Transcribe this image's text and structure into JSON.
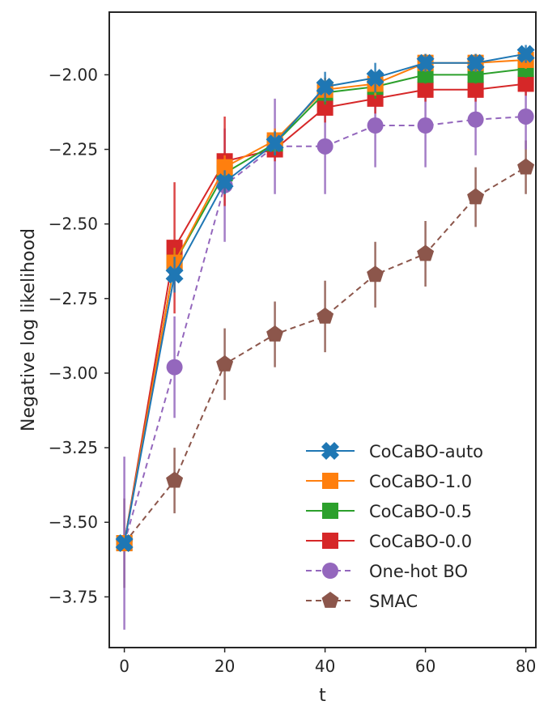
{
  "chart_data": {
    "type": "line",
    "xlabel": "t",
    "ylabel": "Negative log likelihood",
    "xlim": [
      -3,
      82
    ],
    "ylim": [
      -3.92,
      -1.79
    ],
    "xticks": [
      0,
      20,
      40,
      60,
      80
    ],
    "yticks": [
      -2.0,
      -2.25,
      -2.5,
      -2.75,
      -3.0,
      -3.25,
      -3.5,
      -3.75
    ],
    "xtick_labels": [
      "0",
      "20",
      "40",
      "60",
      "80"
    ],
    "ytick_labels": [
      "−2.00",
      "−2.25",
      "−2.50",
      "−2.75",
      "−3.00",
      "−3.25",
      "−3.50",
      "−3.75"
    ],
    "grid": false,
    "legend_position": "lower-right",
    "x": [
      0,
      10,
      20,
      30,
      40,
      50,
      60,
      70,
      80
    ],
    "series": [
      {
        "name": "CoCaBO-auto",
        "color": "#1f77b4",
        "marker": "X",
        "linestyle": "solid",
        "values": [
          -3.57,
          -2.67,
          -2.36,
          -2.23,
          -2.04,
          -2.01,
          -1.96,
          -1.96,
          -1.93
        ],
        "errors": [
          0.0,
          0.06,
          0.04,
          0.04,
          0.05,
          0.05,
          0.03,
          0.03,
          0.03
        ]
      },
      {
        "name": "CoCaBO-1.0",
        "color": "#ff7f0e",
        "marker": "square",
        "linestyle": "solid",
        "values": [
          -3.57,
          -2.63,
          -2.31,
          -2.22,
          -2.05,
          -2.03,
          -1.96,
          -1.96,
          -1.95
        ],
        "errors": [
          0.0,
          0.05,
          0.04,
          0.04,
          0.04,
          0.04,
          0.03,
          0.03,
          0.03
        ]
      },
      {
        "name": "CoCaBO-0.5",
        "color": "#2ca02c",
        "marker": "square",
        "linestyle": "solid",
        "values": [
          -3.57,
          -2.63,
          -2.33,
          -2.23,
          -2.06,
          -2.04,
          -2.0,
          -2.0,
          -1.98
        ],
        "errors": [
          0.0,
          0.05,
          0.04,
          0.04,
          0.04,
          0.04,
          0.03,
          0.03,
          0.03
        ]
      },
      {
        "name": "CoCaBO-0.0",
        "color": "#d62728",
        "marker": "square",
        "linestyle": "solid",
        "values": [
          -3.57,
          -2.58,
          -2.29,
          -2.25,
          -2.11,
          -2.08,
          -2.05,
          -2.05,
          -2.03
        ],
        "errors": [
          0.0,
          0.22,
          0.15,
          0.04,
          0.05,
          0.05,
          0.04,
          0.04,
          0.04
        ]
      },
      {
        "name": "One-hot BO",
        "color": "#9467bd",
        "marker": "circle",
        "linestyle": "dashed",
        "values": [
          -3.57,
          -2.98,
          -2.37,
          -2.24,
          -2.24,
          -2.17,
          -2.17,
          -2.15,
          -2.14
        ],
        "errors": [
          0.29,
          0.17,
          0.19,
          0.16,
          0.16,
          0.14,
          0.14,
          0.12,
          0.11
        ]
      },
      {
        "name": "SMAC",
        "color": "#8c564b",
        "marker": "pentagon",
        "linestyle": "dashed",
        "values": [
          -3.57,
          -3.36,
          -2.97,
          -2.87,
          -2.81,
          -2.67,
          -2.6,
          -2.41,
          -2.31
        ],
        "errors": [
          0.15,
          0.11,
          0.12,
          0.11,
          0.12,
          0.11,
          0.11,
          0.1,
          0.09
        ]
      }
    ]
  }
}
